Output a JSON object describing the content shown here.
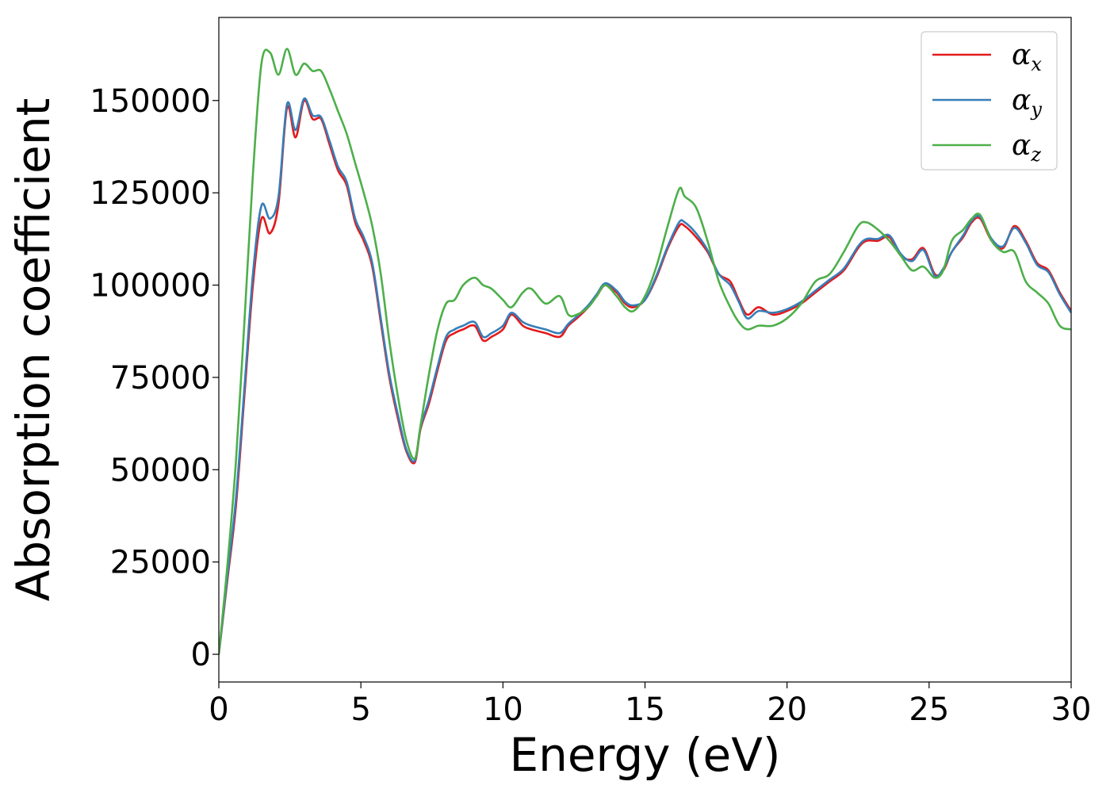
{
  "chart_data": {
    "type": "line",
    "title": "",
    "xlabel": "Energy (eV)",
    "ylabel": "Absorption coefficient",
    "xlim": [
      0,
      30
    ],
    "ylim": [
      -7500,
      172500
    ],
    "xticks": [
      0,
      5,
      10,
      15,
      20,
      25,
      30
    ],
    "yticks": [
      0,
      25000,
      50000,
      75000,
      100000,
      125000,
      150000
    ],
    "grid": false,
    "legend_position": "top-right",
    "series": [
      {
        "name": "αx",
        "symbol": "α",
        "subscript": "x",
        "color": "#e41a1c",
        "x": [
          0,
          0.3,
          0.6,
          0.9,
          1.2,
          1.5,
          1.8,
          2.1,
          2.4,
          2.7,
          3.0,
          3.3,
          3.6,
          3.9,
          4.2,
          4.5,
          4.8,
          5.1,
          5.4,
          5.7,
          6.0,
          6.3,
          6.6,
          6.9,
          7.1,
          7.4,
          7.7,
          8.0,
          8.3,
          8.6,
          9.0,
          9.3,
          9.6,
          10.0,
          10.3,
          10.7,
          11.0,
          11.5,
          12.0,
          12.3,
          12.6,
          13.0,
          13.3,
          13.6,
          14.0,
          14.3,
          14.6,
          15.0,
          15.4,
          15.8,
          16.2,
          16.4,
          16.8,
          17.2,
          17.6,
          18.0,
          18.3,
          18.6,
          19.0,
          19.5,
          20.0,
          20.5,
          21.0,
          21.5,
          22.0,
          22.5,
          22.8,
          23.2,
          23.6,
          24.0,
          24.4,
          24.8,
          25.2,
          25.5,
          25.8,
          26.2,
          26.5,
          26.8,
          27.2,
          27.6,
          28.0,
          28.4,
          28.8,
          29.2,
          29.6,
          30.0
        ],
        "y": [
          0,
          20000,
          40000,
          70000,
          100000,
          118000,
          114000,
          122000,
          148000,
          140000,
          150000,
          145000,
          145000,
          138000,
          131000,
          127000,
          117000,
          112000,
          105000,
          90000,
          75000,
          64000,
          55000,
          52000,
          61000,
          68000,
          77000,
          85000,
          87000,
          88000,
          89000,
          85000,
          86000,
          88000,
          92000,
          89000,
          88000,
          87000,
          86000,
          89000,
          91000,
          94000,
          97000,
          100000,
          98000,
          95000,
          94000,
          96000,
          102000,
          110000,
          116000,
          116000,
          113000,
          109000,
          103000,
          101000,
          96000,
          92000,
          94000,
          92000,
          93000,
          95000,
          98000,
          101000,
          104000,
          110000,
          112000,
          112000,
          113000,
          108000,
          107000,
          110000,
          103000,
          104000,
          109000,
          113000,
          117000,
          118000,
          112000,
          110000,
          116000,
          112000,
          106000,
          104000,
          98000,
          93000
        ]
      },
      {
        "name": "αy",
        "symbol": "α",
        "subscript": "y",
        "color": "#377eb8",
        "x": [
          0,
          0.3,
          0.6,
          0.9,
          1.2,
          1.5,
          1.8,
          2.1,
          2.4,
          2.7,
          3.0,
          3.3,
          3.6,
          3.9,
          4.2,
          4.5,
          4.8,
          5.1,
          5.4,
          5.7,
          6.0,
          6.3,
          6.6,
          6.9,
          7.1,
          7.4,
          7.7,
          8.0,
          8.3,
          8.6,
          9.0,
          9.3,
          9.6,
          10.0,
          10.3,
          10.7,
          11.0,
          11.5,
          12.0,
          12.3,
          12.6,
          13.0,
          13.3,
          13.6,
          14.0,
          14.3,
          14.6,
          15.0,
          15.4,
          15.8,
          16.2,
          16.4,
          16.8,
          17.2,
          17.6,
          18.0,
          18.3,
          18.6,
          19.0,
          19.5,
          20.0,
          20.5,
          21.0,
          21.5,
          22.0,
          22.5,
          22.8,
          23.2,
          23.6,
          24.0,
          24.4,
          24.8,
          25.2,
          25.5,
          25.8,
          26.2,
          26.5,
          26.8,
          27.2,
          27.6,
          28.0,
          28.4,
          28.8,
          29.2,
          29.6,
          30.0
        ],
        "y": [
          0,
          21000,
          42000,
          72000,
          103000,
          121500,
          118000,
          124000,
          149000,
          142000,
          150500,
          146000,
          145500,
          139000,
          132000,
          128000,
          118000,
          113000,
          106000,
          91000,
          76000,
          65000,
          55500,
          52500,
          61500,
          69000,
          78000,
          86000,
          88000,
          89000,
          90000,
          86000,
          87000,
          89000,
          92500,
          90000,
          89000,
          88000,
          87000,
          89500,
          91500,
          94500,
          97500,
          100500,
          98500,
          95500,
          94500,
          96000,
          102500,
          110500,
          117000,
          117000,
          114000,
          109500,
          103000,
          100000,
          95500,
          91000,
          93000,
          92500,
          93500,
          95500,
          98500,
          101500,
          104500,
          110500,
          112500,
          112500,
          113500,
          108500,
          106500,
          109500,
          102500,
          104500,
          109000,
          113500,
          117500,
          118500,
          112500,
          110500,
          115500,
          111500,
          105500,
          103500,
          97500,
          92500
        ]
      },
      {
        "name": "αz",
        "symbol": "α",
        "subscript": "z",
        "color": "#4daf4a",
        "x": [
          0,
          0.3,
          0.6,
          0.9,
          1.2,
          1.5,
          1.8,
          2.1,
          2.4,
          2.7,
          3.0,
          3.3,
          3.6,
          3.9,
          4.2,
          4.5,
          4.8,
          5.1,
          5.4,
          5.7,
          6.0,
          6.3,
          6.6,
          6.9,
          7.1,
          7.4,
          7.7,
          8.0,
          8.3,
          8.6,
          9.0,
          9.3,
          9.6,
          10.0,
          10.3,
          10.7,
          11.0,
          11.5,
          12.0,
          12.3,
          12.6,
          13.0,
          13.3,
          13.6,
          14.0,
          14.3,
          14.6,
          15.0,
          15.4,
          15.8,
          16.2,
          16.4,
          16.8,
          17.2,
          17.6,
          18.0,
          18.3,
          18.6,
          19.0,
          19.5,
          20.0,
          20.5,
          21.0,
          21.5,
          22.0,
          22.5,
          22.8,
          23.2,
          23.6,
          24.0,
          24.4,
          24.8,
          25.2,
          25.5,
          25.8,
          26.2,
          26.5,
          26.8,
          27.2,
          27.6,
          28.0,
          28.4,
          28.8,
          29.2,
          29.6,
          30.0
        ],
        "y": [
          0,
          24000,
          52000,
          90000,
          130000,
          160000,
          163000,
          157000,
          164000,
          157000,
          160000,
          158000,
          158000,
          153000,
          147000,
          141000,
          133000,
          125000,
          116000,
          103000,
          85000,
          70000,
          58000,
          53000,
          62000,
          76000,
          88000,
          95000,
          96000,
          100000,
          102000,
          100000,
          99000,
          96000,
          94000,
          98000,
          99000,
          95000,
          97000,
          92000,
          92000,
          94000,
          97000,
          100000,
          97000,
          94000,
          93000,
          97000,
          105000,
          116000,
          126000,
          124000,
          121000,
          112000,
          101000,
          94000,
          90000,
          88000,
          89000,
          89000,
          91000,
          95000,
          101000,
          103000,
          109000,
          116000,
          117000,
          115000,
          112000,
          108000,
          104000,
          105000,
          102000,
          104000,
          112000,
          115000,
          118000,
          119000,
          112000,
          109000,
          109000,
          101000,
          98000,
          95000,
          89000,
          88000
        ]
      }
    ]
  }
}
